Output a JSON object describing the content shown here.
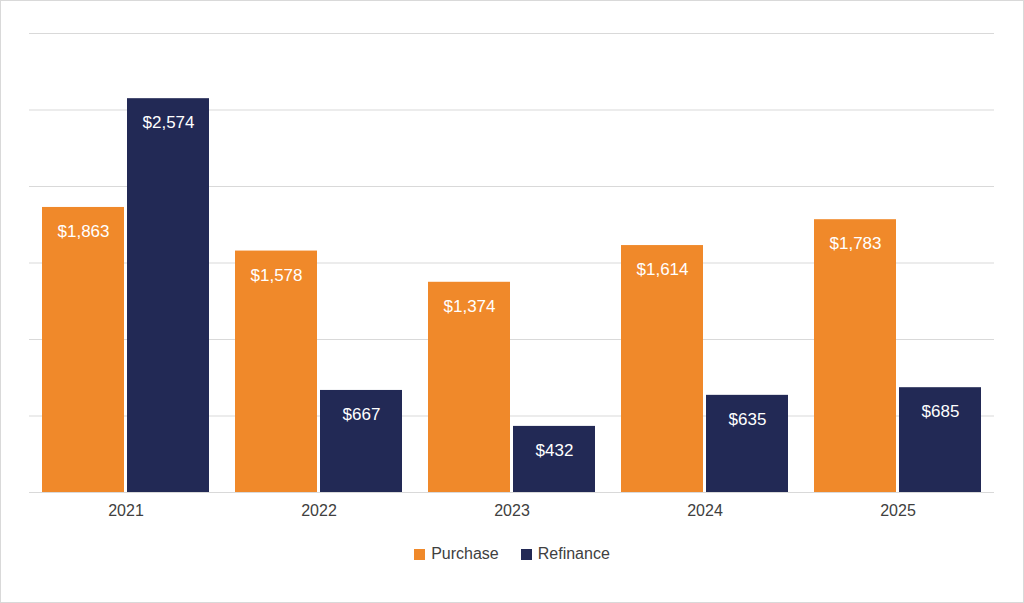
{
  "chart_data": {
    "type": "bar",
    "categories": [
      "2021",
      "2022",
      "2023",
      "2024",
      "2025"
    ],
    "series": [
      {
        "name": "Purchase",
        "color": "#f0892a",
        "values": [
          1863,
          1578,
          1374,
          1614,
          1783
        ],
        "value_labels": [
          "$1,863",
          "$1,578",
          "$1,374",
          "$1,614",
          "$1,783"
        ]
      },
      {
        "name": "Refinance",
        "color": "#222955",
        "values": [
          2574,
          667,
          432,
          635,
          685
        ],
        "value_labels": [
          "$2,574",
          "$667",
          "$432",
          "$635",
          "$685"
        ]
      }
    ],
    "ylim": [
      0,
      3000
    ],
    "yticks": [
      0,
      500,
      1000,
      1500,
      2000,
      2500,
      3000
    ],
    "grid": true,
    "legend": "bottom",
    "data_labels": true,
    "tick_labels": "x"
  }
}
